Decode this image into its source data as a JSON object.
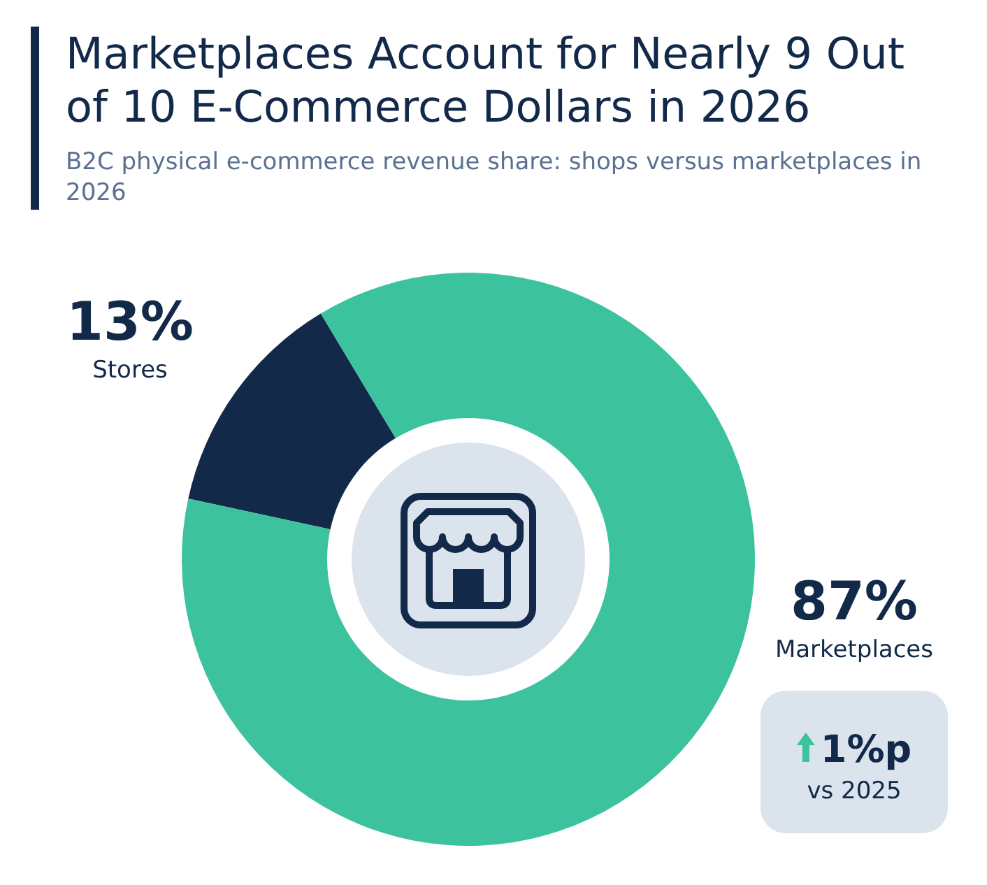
{
  "chart_data": {
    "type": "donut",
    "title": "Marketplaces Account for Nearly 9 Out of 10 E-Commerce Dollars in 2026",
    "subtitle": "B2C physical e-commerce revenue share: shops versus marketplaces in 2026",
    "categories": [
      "Stores",
      "Marketplaces"
    ],
    "values": [
      13,
      87
    ],
    "colors": [
      "#13294a",
      "#3dc29e"
    ],
    "value_labels": [
      "13%",
      "87%"
    ],
    "annotations": [
      "1%p",
      "vs 2025"
    ]
  }
}
